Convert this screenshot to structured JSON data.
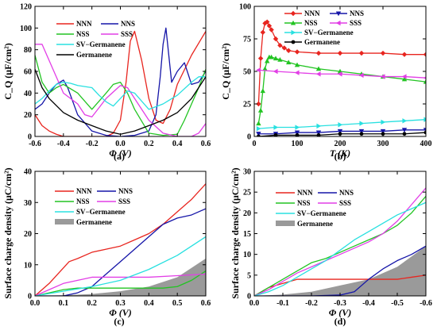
{
  "chart_data": [
    {
      "id": "a",
      "type": "line",
      "panel_label": "(a)",
      "xlabel": "Φ (V)",
      "ylabel": "C_Q (μF/cm²)",
      "xlim": [
        -0.6,
        0.6
      ],
      "ylim": [
        0,
        120
      ],
      "xticks": [
        -0.6,
        -0.4,
        -0.2,
        0.0,
        0.2,
        0.4,
        0.6
      ],
      "xtick_labels": [
        "-0.6",
        "-0.4",
        "-0.2",
        "0.0",
        "0.2",
        "0.4",
        "0.6"
      ],
      "yticks": [
        0,
        20,
        40,
        60,
        80,
        100,
        120
      ],
      "ytick_labels": [
        "0",
        "20",
        "40",
        "60",
        "80",
        "100",
        "120"
      ],
      "legend_position": "top",
      "series": [
        {
          "name": "NNN",
          "color": "#e8251f",
          "x": [
            -0.6,
            -0.55,
            -0.5,
            -0.45,
            -0.4,
            -0.3,
            -0.2,
            -0.1,
            -0.05,
            0.0,
            0.04,
            0.07,
            0.1,
            0.15,
            0.2,
            0.25,
            0.3,
            0.35,
            0.4,
            0.5,
            0.6
          ],
          "y": [
            20,
            10,
            5,
            2,
            0,
            0,
            0,
            0,
            3,
            15,
            50,
            88,
            97,
            70,
            35,
            15,
            12,
            25,
            48,
            75,
            97
          ]
        },
        {
          "name": "NNS",
          "color": "#1515a8",
          "x": [
            -0.6,
            -0.55,
            -0.5,
            -0.45,
            -0.4,
            -0.37,
            -0.3,
            -0.2,
            -0.1,
            0.0,
            0.1,
            0.2,
            0.25,
            0.28,
            0.3,
            0.32,
            0.34,
            0.36,
            0.4,
            0.45,
            0.5,
            0.55,
            0.6
          ],
          "y": [
            25,
            30,
            40,
            48,
            52,
            45,
            20,
            5,
            1,
            0,
            1,
            5,
            20,
            55,
            85,
            100,
            75,
            50,
            60,
            68,
            48,
            50,
            60
          ]
        },
        {
          "name": "NSS",
          "color": "#22c422",
          "x": [
            -0.6,
            -0.55,
            -0.5,
            -0.45,
            -0.4,
            -0.3,
            -0.2,
            -0.1,
            -0.05,
            0.0,
            0.05,
            0.1,
            0.2,
            0.3,
            0.4,
            0.45,
            0.5,
            0.55,
            0.6
          ],
          "y": [
            75,
            50,
            40,
            45,
            48,
            40,
            25,
            40,
            48,
            50,
            40,
            25,
            3,
            1,
            2,
            15,
            30,
            45,
            62
          ]
        },
        {
          "name": "SSS",
          "color": "#e23ee6",
          "x": [
            -0.6,
            -0.55,
            -0.5,
            -0.45,
            -0.4,
            -0.3,
            -0.25,
            -0.2,
            -0.1,
            0.0,
            0.05,
            0.1,
            0.2,
            0.3,
            0.4,
            0.5,
            0.55,
            0.6
          ],
          "y": [
            85,
            85,
            70,
            55,
            40,
            30,
            20,
            18,
            35,
            47,
            45,
            35,
            15,
            3,
            0,
            0,
            3,
            12
          ]
        },
        {
          "name": "SV−Germanene",
          "color": "#28e0e0",
          "x": [
            -0.6,
            -0.55,
            -0.5,
            -0.45,
            -0.4,
            -0.35,
            -0.3,
            -0.2,
            -0.15,
            -0.1,
            -0.05,
            0.0,
            0.05,
            0.1,
            0.2,
            0.3,
            0.4,
            0.5,
            0.55,
            0.6
          ],
          "y": [
            30,
            35,
            42,
            48,
            50,
            49,
            47,
            45,
            38,
            32,
            28,
            35,
            42,
            40,
            25,
            30,
            38,
            50,
            55,
            55
          ]
        },
        {
          "name": "Germanene",
          "color": "#000000",
          "x": [
            -0.6,
            -0.55,
            -0.5,
            -0.4,
            -0.3,
            -0.2,
            -0.1,
            0.0,
            0.1,
            0.2,
            0.3,
            0.4,
            0.5,
            0.55,
            0.6
          ],
          "y": [
            62,
            45,
            35,
            22,
            15,
            10,
            5,
            2,
            5,
            10,
            15,
            22,
            35,
            45,
            55
          ]
        }
      ]
    },
    {
      "id": "b",
      "type": "line",
      "panel_label": "(b)",
      "xlabel": "T (K)",
      "ylabel": "C_Q (μF/cm²)",
      "xlim": [
        0,
        400
      ],
      "ylim": [
        0,
        100
      ],
      "xticks": [
        0,
        100,
        200,
        300,
        400
      ],
      "xtick_labels": [
        "0",
        "100",
        "200",
        "300",
        "400"
      ],
      "yticks": [
        0,
        25,
        50,
        75,
        100
      ],
      "ytick_labels": [
        "0",
        "25",
        "50",
        "75",
        "100"
      ],
      "legend_position": "top-right",
      "series": [
        {
          "name": "NNN",
          "color": "#e8251f",
          "marker": "diamond",
          "x": [
            10,
            15,
            20,
            25,
            30,
            35,
            40,
            50,
            60,
            70,
            80,
            100,
            150,
            200,
            250,
            300,
            350,
            400
          ],
          "y": [
            25,
            60,
            80,
            87,
            88,
            85,
            82,
            75,
            70,
            68,
            66,
            65,
            64,
            64,
            64,
            64,
            63,
            63
          ]
        },
        {
          "name": "NNS",
          "color": "#1515a8",
          "marker": "triangle-down",
          "x": [
            10,
            50,
            100,
            150,
            200,
            250,
            300,
            350,
            400
          ],
          "y": [
            2,
            2,
            3,
            3,
            4,
            4,
            4,
            5,
            5
          ]
        },
        {
          "name": "NSS",
          "color": "#22c422",
          "marker": "triangle-up",
          "x": [
            10,
            15,
            20,
            25,
            30,
            35,
            40,
            50,
            60,
            80,
            100,
            150,
            200,
            250,
            300,
            350,
            400
          ],
          "y": [
            10,
            20,
            35,
            52,
            58,
            61,
            61,
            60,
            59,
            57,
            55,
            52,
            50,
            48,
            46,
            44,
            42
          ]
        },
        {
          "name": "SSS",
          "color": "#e23ee6",
          "marker": "triangle-left",
          "x": [
            10,
            50,
            100,
            150,
            200,
            250,
            300,
            350,
            400
          ],
          "y": [
            51,
            50,
            49,
            48,
            48,
            47,
            46,
            46,
            45
          ]
        },
        {
          "name": "SV−Germanene",
          "color": "#28e0e0",
          "marker": "triangle-right",
          "x": [
            10,
            50,
            100,
            150,
            200,
            250,
            300,
            350,
            400
          ],
          "y": [
            6,
            7,
            7,
            8,
            9,
            10,
            11,
            12,
            13
          ]
        },
        {
          "name": "Germanene",
          "color": "#000000",
          "marker": "circle",
          "x": [
            10,
            50,
            100,
            150,
            200,
            250,
            300,
            350,
            400
          ],
          "y": [
            0,
            1,
            1,
            1,
            2,
            2,
            2,
            2,
            3
          ]
        }
      ]
    },
    {
      "id": "c",
      "type": "area",
      "panel_label": "(c)",
      "xlabel": "Φ (V)",
      "ylabel": "Surface charge density (μC/cm²)",
      "xlim": [
        0,
        0.6
      ],
      "ylim": [
        0,
        40
      ],
      "xticks": [
        0.0,
        0.1,
        0.2,
        0.3,
        0.4,
        0.5,
        0.6
      ],
      "xtick_labels": [
        "0.0",
        "0.1",
        "0.2",
        "0.3",
        "0.4",
        "0.5",
        "0.6"
      ],
      "yticks": [
        0,
        10,
        20,
        30,
        40
      ],
      "ytick_labels": [
        "0",
        "10",
        "20",
        "30",
        "40"
      ],
      "legend_position": "top-left",
      "series": [
        {
          "name": "NNN",
          "color": "#e8251f",
          "x": [
            0,
            0.05,
            0.1,
            0.12,
            0.15,
            0.2,
            0.25,
            0.3,
            0.35,
            0.4,
            0.45,
            0.5,
            0.55,
            0.6
          ],
          "y": [
            0,
            4,
            9,
            11,
            12,
            14,
            15,
            16,
            18,
            20,
            23,
            27,
            31,
            36
          ]
        },
        {
          "name": "NNS",
          "color": "#1515a8",
          "x": [
            0,
            0.05,
            0.1,
            0.15,
            0.2,
            0.25,
            0.3,
            0.35,
            0.4,
            0.45,
            0.5,
            0.55,
            0.6
          ],
          "y": [
            0,
            0,
            0,
            1,
            3,
            7,
            11,
            15,
            19,
            23,
            25,
            26,
            28
          ]
        },
        {
          "name": "NSS",
          "color": "#22c422",
          "x": [
            0,
            0.05,
            0.1,
            0.15,
            0.2,
            0.3,
            0.4,
            0.45,
            0.5,
            0.55,
            0.6
          ],
          "y": [
            0,
            1,
            2,
            2.5,
            2.5,
            2.5,
            2.5,
            2.5,
            3,
            5,
            8
          ]
        },
        {
          "name": "SSS",
          "color": "#e23ee6",
          "x": [
            0,
            0.05,
            0.1,
            0.15,
            0.2,
            0.25,
            0.3,
            0.4,
            0.5,
            0.6
          ],
          "y": [
            0,
            2,
            4,
            5,
            6,
            6,
            6,
            6,
            6.5,
            7
          ]
        },
        {
          "name": "SV−Germanene",
          "color": "#28e0e0",
          "x": [
            0,
            0.1,
            0.2,
            0.3,
            0.4,
            0.5,
            0.6
          ],
          "y": [
            0,
            1.5,
            3,
            5,
            8.5,
            13,
            19
          ]
        },
        {
          "name": "Germanene",
          "color": "#9a9a9a",
          "fill": true,
          "x": [
            0,
            0.1,
            0.2,
            0.3,
            0.4,
            0.5,
            0.6
          ],
          "y": [
            0,
            0.2,
            0.6,
            1.5,
            3,
            6,
            12
          ]
        }
      ]
    },
    {
      "id": "d",
      "type": "area",
      "panel_label": "(d)",
      "xlabel": "Φ (V)",
      "ylabel": "Surface charge density (μC/cm²)",
      "xlim": [
        0,
        -0.6
      ],
      "ylim": [
        0,
        30
      ],
      "xticks": [
        0.0,
        -0.1,
        -0.2,
        -0.3,
        -0.4,
        -0.5,
        -0.6
      ],
      "xtick_labels": [
        "0.0",
        "-0.1",
        "-0.2",
        "-0.3",
        "-0.4",
        "-0.5",
        "-0.6"
      ],
      "yticks": [
        0,
        5,
        10,
        15,
        20,
        25,
        30
      ],
      "ytick_labels": [
        "0",
        "5",
        "10",
        "15",
        "20",
        "25",
        "30"
      ],
      "legend_position": "top-left",
      "series": [
        {
          "name": "NNN",
          "color": "#e8251f",
          "x": [
            0,
            -0.05,
            -0.1,
            -0.15,
            -0.2,
            -0.3,
            -0.4,
            -0.5,
            -0.55,
            -0.6
          ],
          "y": [
            0,
            2,
            3,
            4,
            4,
            4,
            4,
            4,
            4.5,
            5
          ]
        },
        {
          "name": "NNS",
          "color": "#1515a8",
          "x": [
            0,
            -0.1,
            -0.2,
            -0.3,
            -0.35,
            -0.4,
            -0.45,
            -0.5,
            -0.55,
            -0.6
          ],
          "y": [
            0,
            0,
            0,
            0.2,
            1,
            4,
            6.5,
            8.5,
            10,
            12
          ]
        },
        {
          "name": "NSS",
          "color": "#22c422",
          "x": [
            0,
            -0.05,
            -0.1,
            -0.15,
            -0.2,
            -0.25,
            -0.3,
            -0.35,
            -0.4,
            -0.45,
            -0.5,
            -0.55,
            -0.6
          ],
          "y": [
            0,
            2,
            4,
            6,
            8,
            9,
            10.5,
            12,
            13.5,
            15,
            17,
            20,
            24
          ]
        },
        {
          "name": "SSS",
          "color": "#e23ee6",
          "x": [
            0,
            -0.05,
            -0.1,
            -0.15,
            -0.2,
            -0.25,
            -0.3,
            -0.35,
            -0.4,
            -0.45,
            -0.5,
            -0.55,
            -0.6
          ],
          "y": [
            0,
            1.5,
            3.5,
            5.5,
            7,
            8.5,
            10,
            11.5,
            13,
            15,
            18,
            22,
            26
          ]
        },
        {
          "name": "SV−Germanene",
          "color": "#28e0e0",
          "x": [
            0,
            -0.05,
            -0.1,
            -0.15,
            -0.2,
            -0.25,
            -0.3,
            -0.35,
            -0.4,
            -0.45,
            -0.5,
            -0.55,
            -0.6
          ],
          "y": [
            0,
            1,
            2.5,
            4.5,
            6.5,
            8.5,
            11,
            13.5,
            15.5,
            17.5,
            19.5,
            21,
            22.5
          ]
        },
        {
          "name": "Germanene",
          "color": "#9a9a9a",
          "fill": true,
          "x": [
            0,
            -0.1,
            -0.2,
            -0.3,
            -0.4,
            -0.5,
            -0.6
          ],
          "y": [
            0,
            0.3,
            1,
            2.5,
            4,
            7,
            12
          ]
        }
      ]
    }
  ]
}
